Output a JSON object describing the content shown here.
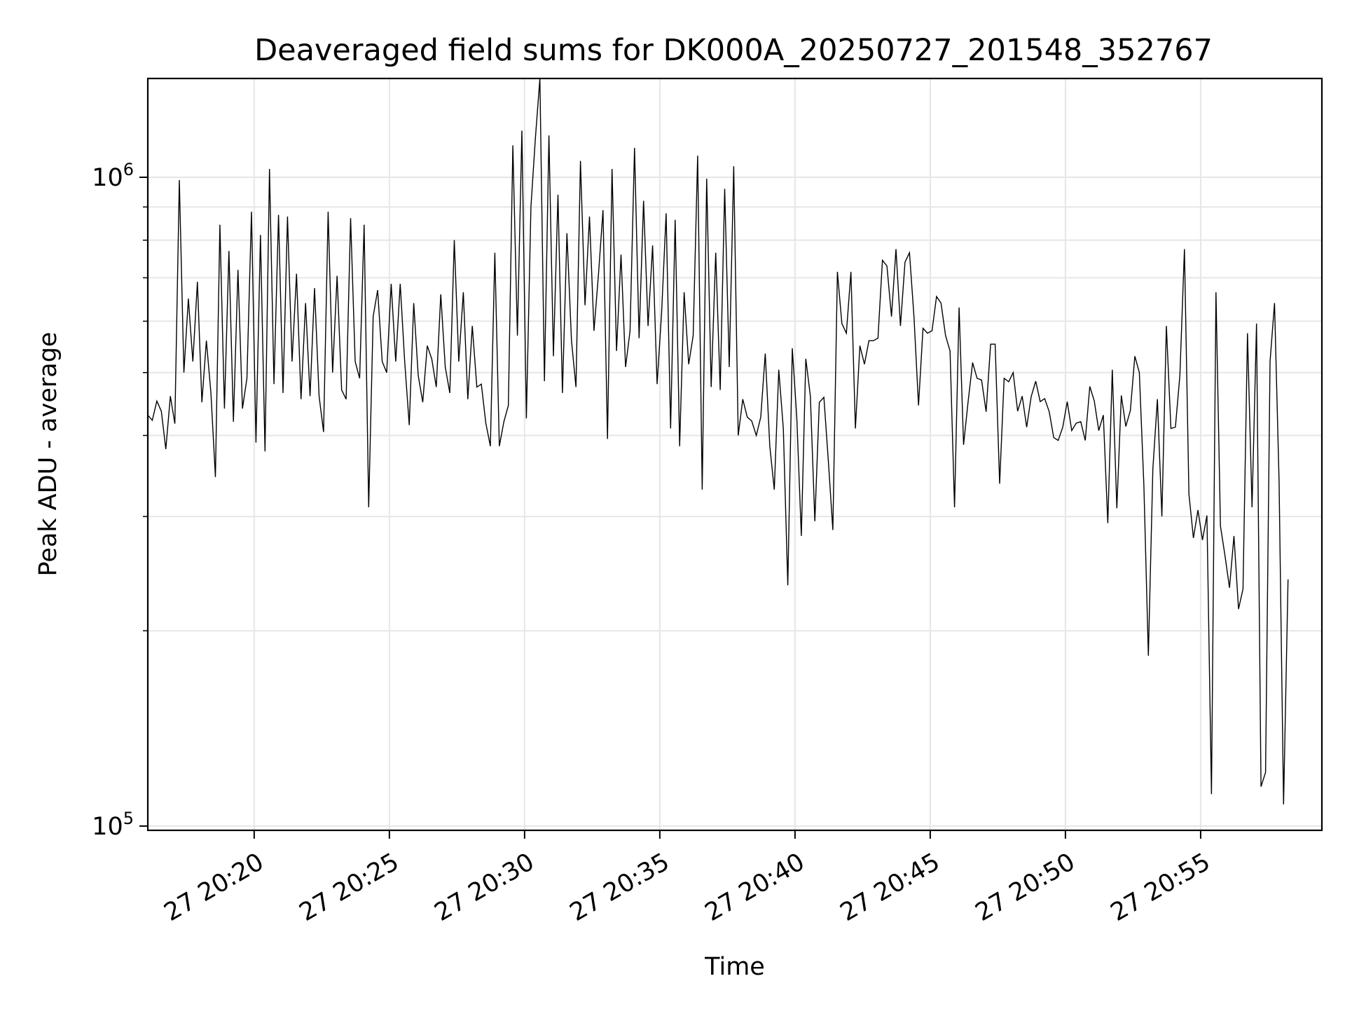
{
  "chart_data": {
    "type": "line",
    "title": "Deaveraged field sums for DK000A_20250727_201548_352767",
    "xlabel": "Time",
    "ylabel": "Peak ADU - average",
    "yscale": "log",
    "grid": true,
    "line_color": "#000000",
    "grid_color": "#e6e6e6",
    "xlim": [
      "2025-07-27 20:16:04",
      "2025-07-27 20:59:29"
    ],
    "ylim": [
      98500,
      1420000
    ],
    "x_ticks": [
      {
        "time": "2025-07-27 20:20:00",
        "label": "27 20:20"
      },
      {
        "time": "2025-07-27 20:25:00",
        "label": "27 20:25"
      },
      {
        "time": "2025-07-27 20:30:00",
        "label": "27 20:30"
      },
      {
        "time": "2025-07-27 20:35:00",
        "label": "27 20:35"
      },
      {
        "time": "2025-07-27 20:40:00",
        "label": "27 20:40"
      },
      {
        "time": "2025-07-27 20:45:00",
        "label": "27 20:45"
      },
      {
        "time": "2025-07-27 20:50:00",
        "label": "27 20:50"
      },
      {
        "time": "2025-07-27 20:55:00",
        "label": "27 20:55"
      }
    ],
    "y_ticks": [
      {
        "value": 100000,
        "base": "10",
        "exp": "5"
      },
      {
        "value": 1000000,
        "base": "10",
        "exp": "6"
      }
    ],
    "x_start": "2025-07-27 20:16:04",
    "x_step_seconds": 10,
    "y": [
      430000,
      422000,
      452000,
      436000,
      381000,
      460000,
      417000,
      990000,
      500000,
      650000,
      520000,
      690000,
      450000,
      560000,
      465000,
      345000,
      845000,
      440000,
      770000,
      420000,
      720000,
      440000,
      490000,
      885000,
      390000,
      815000,
      378000,
      1030000,
      480000,
      875000,
      465000,
      870000,
      520000,
      710000,
      455000,
      640000,
      460000,
      675000,
      460000,
      405000,
      885000,
      500000,
      705000,
      470000,
      455000,
      865000,
      520000,
      490000,
      845000,
      310000,
      610000,
      670000,
      520000,
      500000,
      685000,
      520000,
      685000,
      520000,
      415000,
      640000,
      495000,
      450000,
      550000,
      525000,
      475000,
      660000,
      510000,
      465000,
      800000,
      520000,
      665000,
      455000,
      590000,
      475000,
      480000,
      418000,
      385000,
      765000,
      385000,
      420000,
      445000,
      1120000,
      570000,
      1180000,
      425000,
      900000,
      1150000,
      1420000,
      485000,
      1160000,
      530000,
      940000,
      465000,
      820000,
      560000,
      475000,
      1060000,
      635000,
      870000,
      580000,
      710000,
      890000,
      395000,
      1030000,
      540000,
      760000,
      510000,
      580000,
      1110000,
      565000,
      920000,
      590000,
      785000,
      480000,
      620000,
      880000,
      410000,
      860000,
      385000,
      665000,
      515000,
      570000,
      1080000,
      330000,
      995000,
      475000,
      765000,
      470000,
      960000,
      510000,
      1040000,
      400000,
      455000,
      427000,
      421000,
      400000,
      427000,
      535000,
      385000,
      330000,
      505000,
      410000,
      235000,
      545000,
      425000,
      280000,
      525000,
      460000,
      295000,
      450000,
      458000,
      365000,
      286000,
      715000,
      595000,
      575000,
      715000,
      410000,
      550000,
      515000,
      560000,
      560000,
      565000,
      745000,
      730000,
      610000,
      775000,
      590000,
      740000,
      765000,
      610000,
      445000,
      585000,
      575000,
      580000,
      655000,
      640000,
      570000,
      540000,
      310000,
      630000,
      387000,
      450000,
      518000,
      490000,
      487000,
      435000,
      553000,
      553000,
      337000,
      490000,
      484000,
      500000,
      436000,
      460000,
      412000,
      459000,
      485000,
      451000,
      456000,
      435000,
      397000,
      393000,
      412000,
      451000,
      407000,
      418000,
      420000,
      393000,
      476000,
      452000,
      407000,
      430000,
      293000,
      505000,
      309000,
      461000,
      413000,
      437000,
      530000,
      500000,
      335000,
      183000,
      355000,
      455000,
      300000,
      590000,
      410000,
      412000,
      495000,
      775000,
      325000,
      278000,
      307000,
      276000,
      301000,
      112000,
      665000,
      290000,
      261000,
      233000,
      280000,
      216000,
      232000,
      575000,
      310000,
      595000,
      115000,
      121000,
      520000,
      640000,
      340000,
      108000,
      240000
    ]
  }
}
